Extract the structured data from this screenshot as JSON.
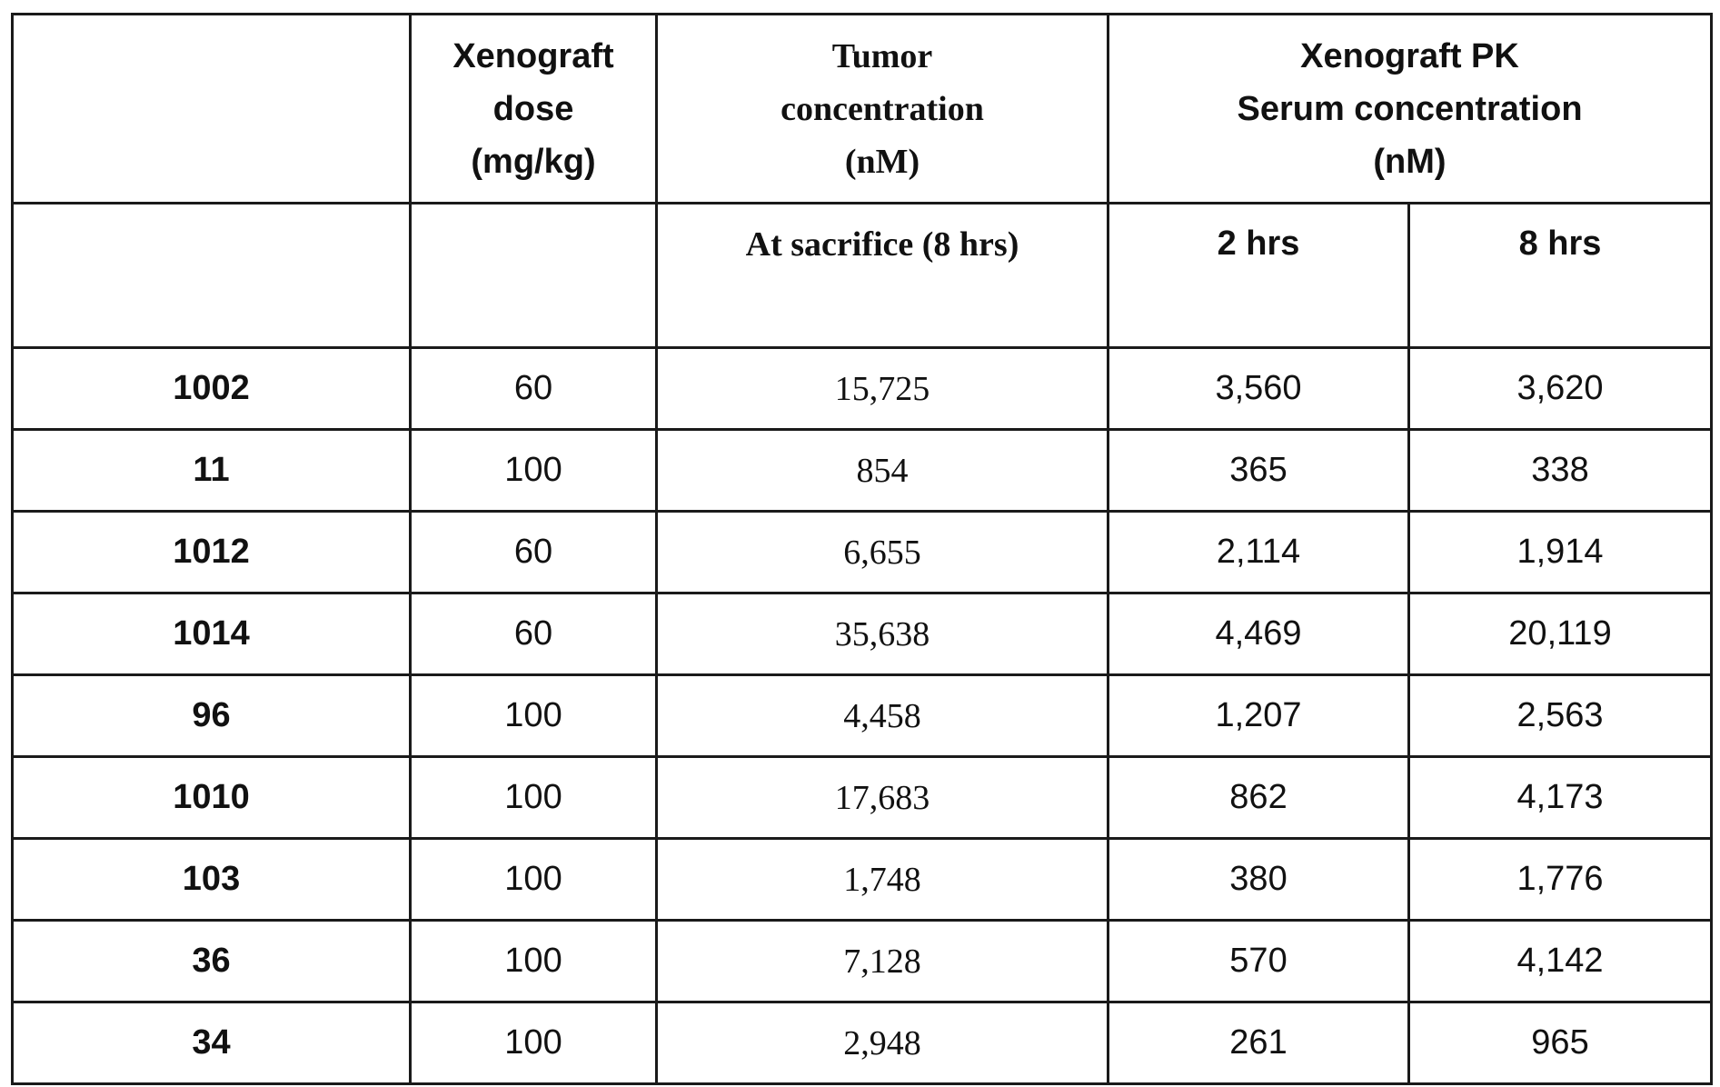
{
  "table": {
    "header": {
      "compound": "",
      "dose": [
        "Xenograft",
        "dose",
        "(mg/kg)"
      ],
      "tumor": [
        "Tumor",
        "concentration",
        "(nM)"
      ],
      "serum": [
        "Xenograft PK",
        "Serum concentration",
        "(nM)"
      ]
    },
    "subheader": {
      "compound": "",
      "dose": "",
      "tumor": "At sacrifice (8 hrs)",
      "serum_2h": "2 hrs",
      "serum_8h": "8 hrs"
    },
    "rows": [
      {
        "compound": "1002",
        "dose": "60",
        "tumor": "15,725",
        "serum_2h": "3,560",
        "serum_8h": "3,620"
      },
      {
        "compound": "11",
        "dose": "100",
        "tumor": "854",
        "serum_2h": "365",
        "serum_8h": "338"
      },
      {
        "compound": "1012",
        "dose": "60",
        "tumor": "6,655",
        "serum_2h": "2,114",
        "serum_8h": "1,914"
      },
      {
        "compound": "1014",
        "dose": "60",
        "tumor": "35,638",
        "serum_2h": "4,469",
        "serum_8h": "20,119"
      },
      {
        "compound": "96",
        "dose": "100",
        "tumor": "4,458",
        "serum_2h": "1,207",
        "serum_8h": "2,563"
      },
      {
        "compound": "1010",
        "dose": "100",
        "tumor": "17,683",
        "serum_2h": "862",
        "serum_8h": "4,173"
      },
      {
        "compound": "103",
        "dose": "100",
        "tumor": "1,748",
        "serum_2h": "380",
        "serum_8h": "1,776"
      },
      {
        "compound": "36",
        "dose": "100",
        "tumor": "7,128",
        "serum_2h": "570",
        "serum_8h": "4,142"
      },
      {
        "compound": "34",
        "dose": "100",
        "tumor": "2,948",
        "serum_2h": "261",
        "serum_8h": "965"
      }
    ]
  }
}
